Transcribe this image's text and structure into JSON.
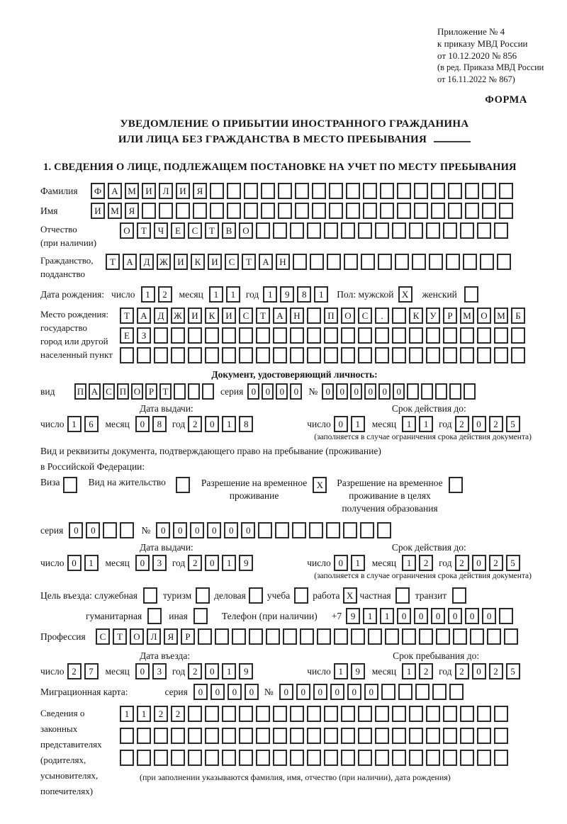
{
  "header": {
    "appendix_line1": "Приложение № 4",
    "appendix_line2": "к приказу МВД России",
    "appendix_line3": "от 10.12.2020 № 856",
    "appendix_note1": "(в ред. Приказа МВД России",
    "appendix_note2": "от 16.11.2022 № 867)",
    "forma": "ФОРМА",
    "title_line1": "УВЕДОМЛЕНИЕ О ПРИБЫТИИ ИНОСТРАННОГО ГРАЖДАНИНА",
    "title_line2": "ИЛИ ЛИЦА БЕЗ ГРАЖДАНСТВА В МЕСТО ПРЕБЫВАНИЯ",
    "section1_title": "1. СВЕДЕНИЯ О ЛИЦЕ, ПОДЛЕЖАЩЕМ ПОСТАНОВКЕ НА УЧЕТ ПО МЕСТУ ПРЕБЫВАНИЯ"
  },
  "labels": {
    "surname": "Фамилия",
    "given_name": "Имя",
    "patronymic_1": "Отчество",
    "patronymic_2": "(при наличии)",
    "citizenship_1": "Гражданство,",
    "citizenship_2": "подданство",
    "birth_date": "Дата рождения:",
    "day": "число",
    "month": "месяц",
    "year": "год",
    "sex_male": "Пол: мужской",
    "sex_female": "женский",
    "birthplace_1": "Место рождения:",
    "birthplace_2": "государство",
    "birthplace_3": "город или другой",
    "birthplace_4": "населенный пункт",
    "identity_doc_header": "Документ, удостоверяющий личность:",
    "doc_kind": "вид",
    "series": "серия",
    "number_sign": "№",
    "issue_date": "Дата выдачи:",
    "valid_until": "Срок действия до:",
    "restriction_note": "(заполняется в случае ограничения срока действия документа)",
    "right_doc_line1": "Вид и реквизиты документа, подтверждающего право на пребывание (проживание)",
    "right_doc_line2": "в Российской Федерации:",
    "visa": "Виза",
    "residence_permit": "Вид на жительство",
    "rvp_line1": "Разрешение на временное",
    "rvp_line2": "проживание",
    "rvp_edu_line1": "Разрешение на временное",
    "rvp_edu_line2": "проживание в целях",
    "rvp_edu_line3": "получения образования",
    "purpose_service": "Цель въезда: служебная",
    "purpose_tourism": "туризм",
    "purpose_business": "деловая",
    "purpose_study": "учеба",
    "purpose_work": "работа",
    "purpose_private": "частная",
    "purpose_transit": "транзит",
    "purpose_humanitarian": "гуманитарная",
    "purpose_other": "иная",
    "phone": "Телефон (при наличии)",
    "phone_prefix": "+7",
    "profession": "Профессия",
    "entry_date": "Дата въезда:",
    "stay_until": "Срок пребывания до:",
    "migration_card": "Миграционная карта:",
    "reps_1": "Сведения о",
    "reps_2": "законных",
    "reps_3": "представителях",
    "reps_4": "(родителях,",
    "reps_5": "усыновителях,",
    "reps_6": "попечителях)",
    "reps_note": "(при заполнении указываются фамилия, имя, отчество (при наличии), дата рождения)"
  },
  "fields": {
    "surname": {
      "value": "ФАМИЛИЯ",
      "count": 25
    },
    "given_name": {
      "value": "ИМЯ",
      "count": 25
    },
    "patronymic": {
      "value": "ОТЧЕСТВО",
      "count": 23
    },
    "citizenship": {
      "value": "ТАДЖИКИСТАН",
      "count": 24
    },
    "birth_day": {
      "value": "12",
      "count": 2
    },
    "birth_month": {
      "value": "11",
      "count": 2
    },
    "birth_year": {
      "value": "1981",
      "count": 4
    },
    "birthplace_row1": {
      "value": "ТАДЖИКИСТАН ПОС. КУРМОМБ",
      "count": 24
    },
    "birthplace_row2": {
      "value": "ЕЗ",
      "count": 24
    },
    "birthplace_row3": {
      "value": "",
      "count": 24
    },
    "id_kind": {
      "value": "ПАСПОРТ",
      "count": 10
    },
    "id_series": {
      "value": "0000",
      "count": 4
    },
    "id_number": {
      "value": "000000",
      "count": 11
    },
    "id_issue_day": {
      "value": "16",
      "count": 2
    },
    "id_issue_month": {
      "value": "08",
      "count": 2
    },
    "id_issue_year": {
      "value": "2018",
      "count": 4
    },
    "id_valid_day": {
      "value": "01",
      "count": 2
    },
    "id_valid_month": {
      "value": "11",
      "count": 2
    },
    "id_valid_year": {
      "value": "2025",
      "count": 4
    },
    "res_series": {
      "value": "00",
      "count": 4
    },
    "res_number": {
      "value": "000000",
      "count": 14
    },
    "res_issue_day": {
      "value": "01",
      "count": 2
    },
    "res_issue_month": {
      "value": "03",
      "count": 2
    },
    "res_issue_year": {
      "value": "2019",
      "count": 4
    },
    "res_valid_day": {
      "value": "01",
      "count": 2
    },
    "res_valid_month": {
      "value": "12",
      "count": 2
    },
    "res_valid_year": {
      "value": "2025",
      "count": 4
    },
    "phone_number": {
      "value": "911000000",
      "count": 10
    },
    "profession": {
      "value": "СТОЛЯР",
      "count": 25
    },
    "entry_day": {
      "value": "27",
      "count": 2
    },
    "entry_month": {
      "value": "03",
      "count": 2
    },
    "entry_year": {
      "value": "2019",
      "count": 4
    },
    "stay_day": {
      "value": "19",
      "count": 2
    },
    "stay_month": {
      "value": "12",
      "count": 2
    },
    "stay_year": {
      "value": "2025",
      "count": 4
    },
    "mig_series": {
      "value": "0000",
      "count": 4
    },
    "mig_number": {
      "value": "000000",
      "count": 11
    },
    "reps_row1": {
      "value": "1122",
      "count": 23
    },
    "reps_row2": {
      "value": "",
      "count": 23
    },
    "reps_row3": {
      "value": "",
      "count": 23
    }
  },
  "checks": {
    "sex_male": "X",
    "sex_female": "",
    "visa": "",
    "residence_permit": "",
    "rvp": "X",
    "rvp_edu": "",
    "purpose_service": "",
    "purpose_tourism": "",
    "purpose_business": "",
    "purpose_study": "",
    "purpose_work": "X",
    "purpose_private": "",
    "purpose_transit": "",
    "purpose_humanitarian": "",
    "purpose_other": ""
  }
}
